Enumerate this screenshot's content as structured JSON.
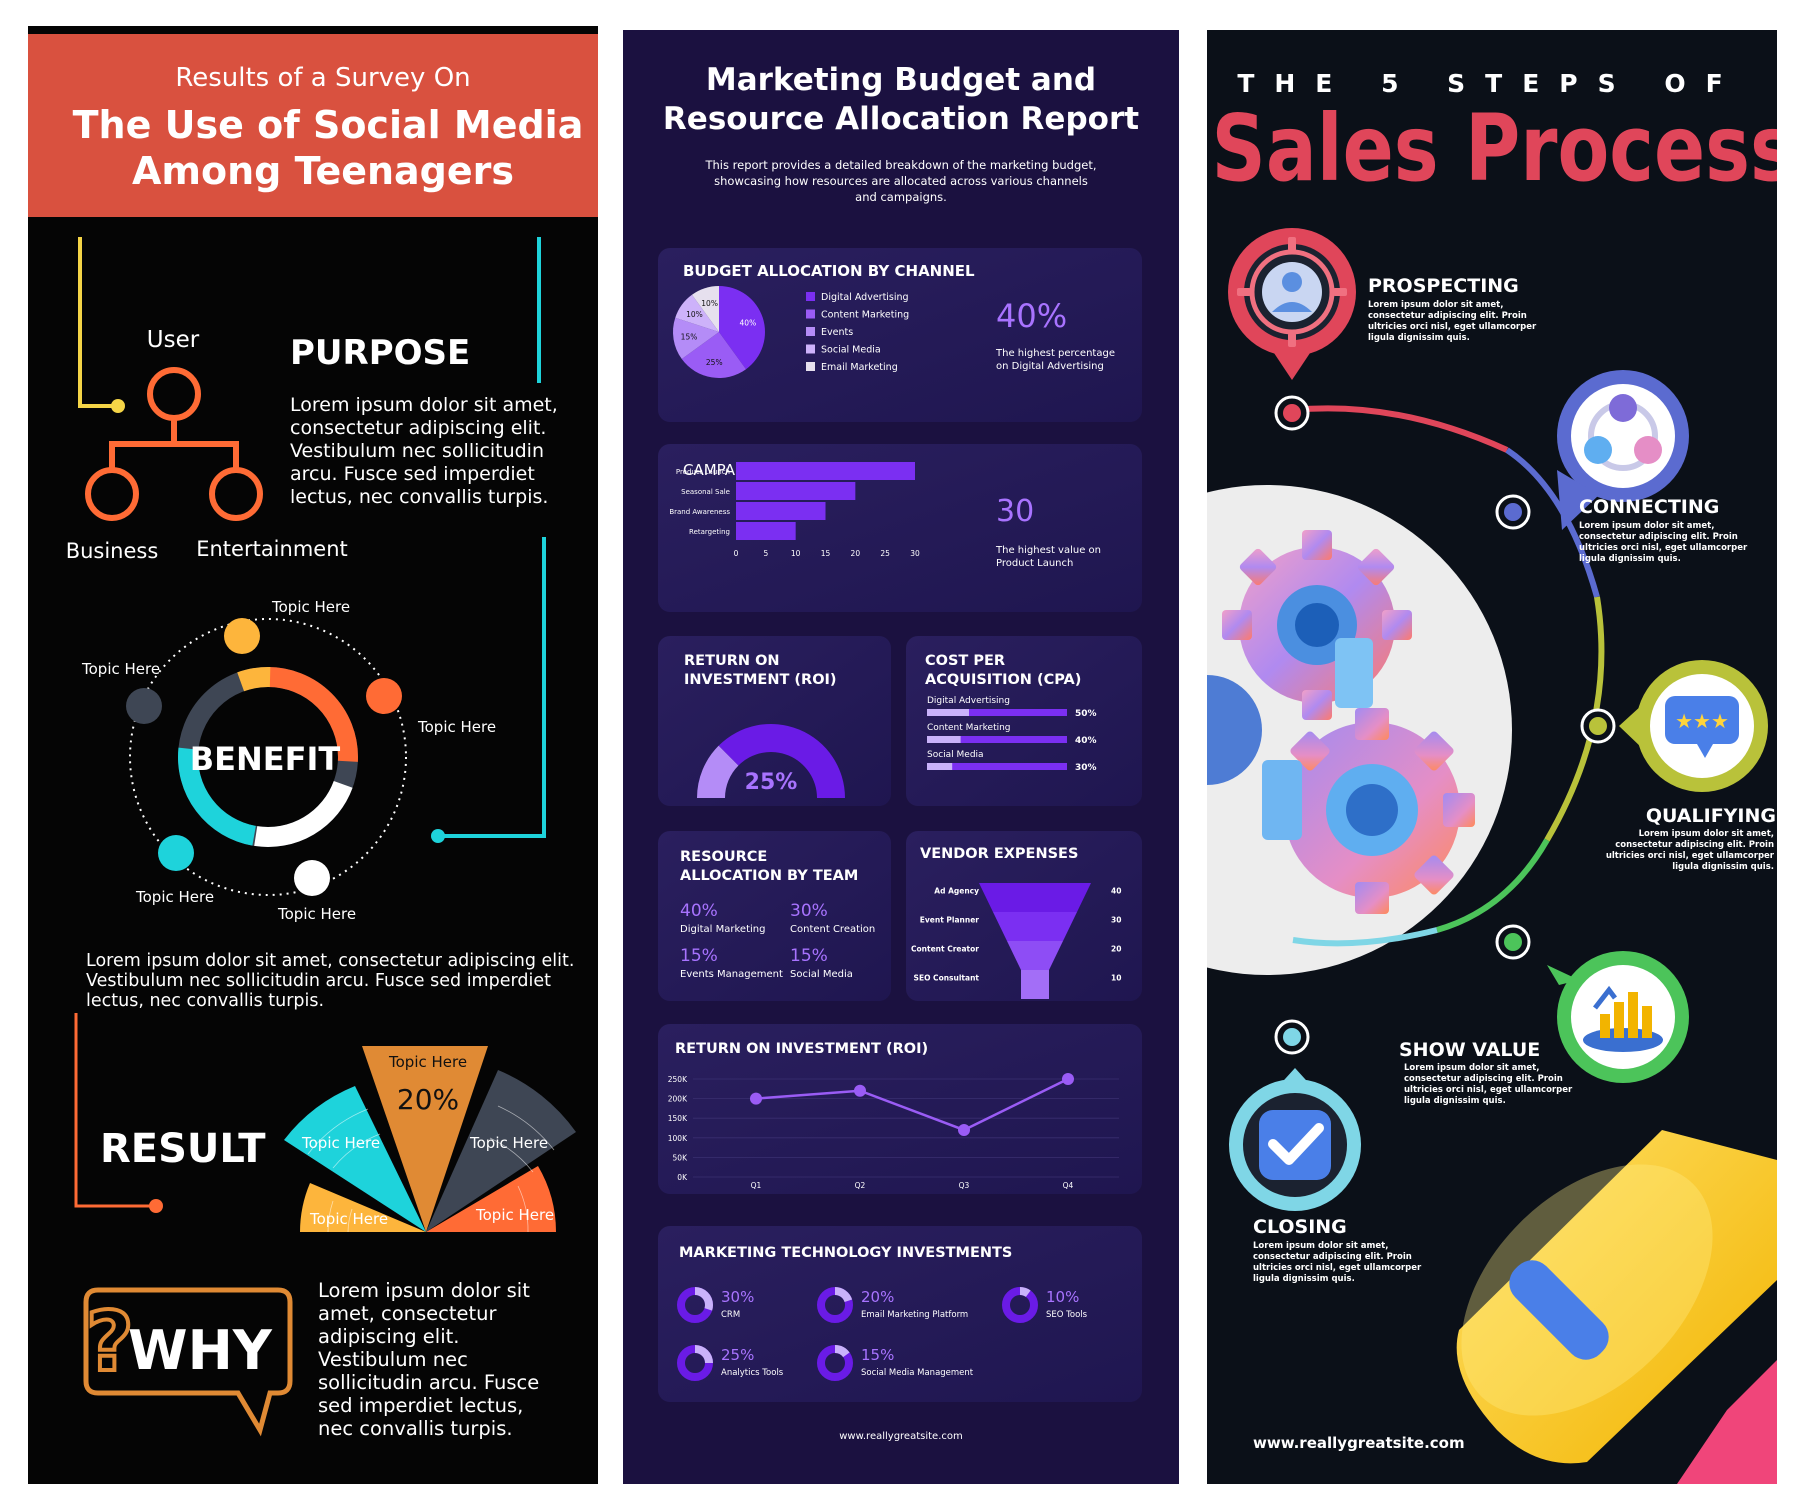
{
  "survey": {
    "subtitle": "Results of a Survey On",
    "title_line1": "The Use of Social Media",
    "title_line2": "Among Teenagers",
    "purpose": {
      "heading": "PURPOSE",
      "body_lines": [
        "Lorem ipsum dolor sit amet,",
        "consectetur adipiscing elit.",
        "Vestibulum nec sollicitudin",
        "arcu. Fusce sed imperdiet",
        "lectus, nec convallis turpis."
      ],
      "node_top": "User",
      "node_left": "Business",
      "node_right": "Entertainment"
    },
    "benefit": {
      "heading": "BENEFIT",
      "topics": [
        "Topic Here",
        "Topic Here",
        "Topic Here",
        "Topic Here",
        "Topic Here"
      ],
      "body_lines": [
        "Lorem ipsum dolor sit amet, consectetur adipiscing elit.",
        "Vestibulum nec sollicitudin arcu. Fusce sed imperdiet",
        "lectus, nec convallis turpis."
      ]
    },
    "result": {
      "heading": "RESULT",
      "segments": [
        {
          "label": "Topic Here",
          "color": "#FDB53C"
        },
        {
          "label": "Topic Here",
          "color": "#1ED3DB"
        },
        {
          "label": "Topic Here",
          "color": "#E08A34"
        },
        {
          "label": "Topic Here",
          "color": "#3E4654"
        },
        {
          "label": "Topic Here",
          "color": "#FF6B35"
        }
      ],
      "highlight_value": "20%"
    },
    "why": {
      "heading": "WHY",
      "body_lines": [
        "Lorem ipsum dolor sit",
        "amet, consectetur",
        "adipiscing elit.",
        "Vestibulum nec",
        "sollicitudin arcu. Fusce",
        "sed imperdiet lectus,",
        "nec convallis turpis."
      ]
    }
  },
  "marketing": {
    "title_line1": "Marketing Budget and",
    "title_line2": "Resource Allocation Report",
    "intro_lines": [
      "This report provides a detailed breakdown of the marketing budget,",
      "showcasing how resources are allocated across various channels",
      "and campaigns."
    ],
    "channel": {
      "heading": "BUDGET ALLOCATION BY CHANNEL",
      "highlight": "40%",
      "note_lines": [
        "The highest percentage",
        "on Digital Advertising"
      ]
    },
    "campaign": {
      "heading": "CAMPAIGN-SPECIFIC BUDGETS",
      "highlight": "30",
      "note_lines": [
        "The highest value on",
        "Product Launch"
      ]
    },
    "roi_gauge": {
      "heading_line1": "RETURN ON",
      "heading_line2": "INVESTMENT (ROI)",
      "value": "25%",
      "fraction": 0.25
    },
    "cpa": {
      "heading_line1": "COST PER",
      "heading_line2": "ACQUISITION (CPA)",
      "items": [
        {
          "label": "Digital Advertising",
          "value": "50%",
          "fraction": 0.5
        },
        {
          "label": "Content Marketing",
          "value": "40%",
          "fraction": 0.4
        },
        {
          "label": "Social Media",
          "value": "30%",
          "fraction": 0.3
        }
      ]
    },
    "team": {
      "heading_line1": "RESOURCE",
      "heading_line2": "ALLOCATION BY TEAM",
      "items": [
        {
          "value": "40%",
          "label": "Digital Marketing"
        },
        {
          "value": "30%",
          "label": "Content Creation"
        },
        {
          "value": "15%",
          "label": "Events Management"
        },
        {
          "value": "15%",
          "label": "Social Media"
        }
      ]
    },
    "vendor": {
      "heading": "VENDOR EXPENSES"
    },
    "roi_line": {
      "heading": "RETURN ON INVESTMENT (ROI)"
    },
    "tech": {
      "heading": "MARKETING TECHNOLOGY INVESTMENTS",
      "items": [
        {
          "value": "30%",
          "label": "CRM",
          "fraction": 0.3
        },
        {
          "value": "20%",
          "label": "Email Marketing Platform",
          "fraction": 0.2
        },
        {
          "value": "10%",
          "label": "SEO Tools",
          "fraction": 0.1
        },
        {
          "value": "25%",
          "label": "Analytics Tools",
          "fraction": 0.25
        },
        {
          "value": "15%",
          "label": "Social Media Management",
          "fraction": 0.15
        }
      ]
    },
    "footer": "www.reallygreatsite.com"
  },
  "sales": {
    "kicker": "THE 5 STEPS OF",
    "title": "Sales Process",
    "body_lines": [
      "Lorem ipsum dolor sit amet,",
      "consectetur adipiscing elit. Proin",
      "ultricies orci nisl, eget ullamcorper",
      "ligula dignissim quis."
    ],
    "steps": [
      {
        "name": "PROSPECTING",
        "color": "#E0465A"
      },
      {
        "name": "CONNECTING",
        "color": "#5B6BD0"
      },
      {
        "name": "QUALIFYING",
        "color": "#B9C23A"
      },
      {
        "name": "SHOW VALUE",
        "color": "#4CC45A"
      },
      {
        "name": "CLOSING",
        "color": "#7FD6E6"
      }
    ],
    "footer": "www.reallygreatsite.com"
  },
  "chart_data": [
    {
      "type": "pie",
      "title": "BUDGET ALLOCATION BY CHANNEL",
      "categories": [
        "Digital Advertising",
        "Content Marketing",
        "Events",
        "Social Media",
        "Email Marketing"
      ],
      "values": [
        40,
        25,
        15,
        10,
        10
      ],
      "slice_labels": [
        "40%",
        "25%",
        "15%",
        "10%",
        "10%"
      ],
      "colors": [
        "#7B2FF2",
        "#9A5CF5",
        "#B48CF7",
        "#CDB2FA",
        "#E6E0EE"
      ],
      "legend": "right"
    },
    {
      "type": "bar",
      "title": "CAMPAIGN-SPECIFIC BUDGETS",
      "orientation": "horizontal",
      "categories": [
        "Product Launch",
        "Seasonal Sale",
        "Brand Awareness",
        "Retargeting"
      ],
      "values": [
        30,
        20,
        15,
        10
      ],
      "xticks": [
        "0",
        "5",
        "10",
        "15",
        "20",
        "25",
        "30"
      ],
      "xlim": [
        0,
        30
      ]
    },
    {
      "type": "bar",
      "title": "VENDOR EXPENSES",
      "style": "funnel",
      "categories": [
        "Ad Agency",
        "Event Planner",
        "Content Creator",
        "SEO Consultant"
      ],
      "values": [
        40,
        30,
        20,
        10
      ]
    },
    {
      "type": "line",
      "title": "RETURN ON INVESTMENT (ROI)",
      "x": [
        "Q1",
        "Q2",
        "Q3",
        "Q4"
      ],
      "values": [
        200000,
        220000,
        120000,
        250000
      ],
      "yticks": [
        "0K",
        "50K",
        "100K",
        "150K",
        "200K",
        "250K"
      ],
      "ylim": [
        0,
        250000
      ],
      "grid": true
    }
  ]
}
